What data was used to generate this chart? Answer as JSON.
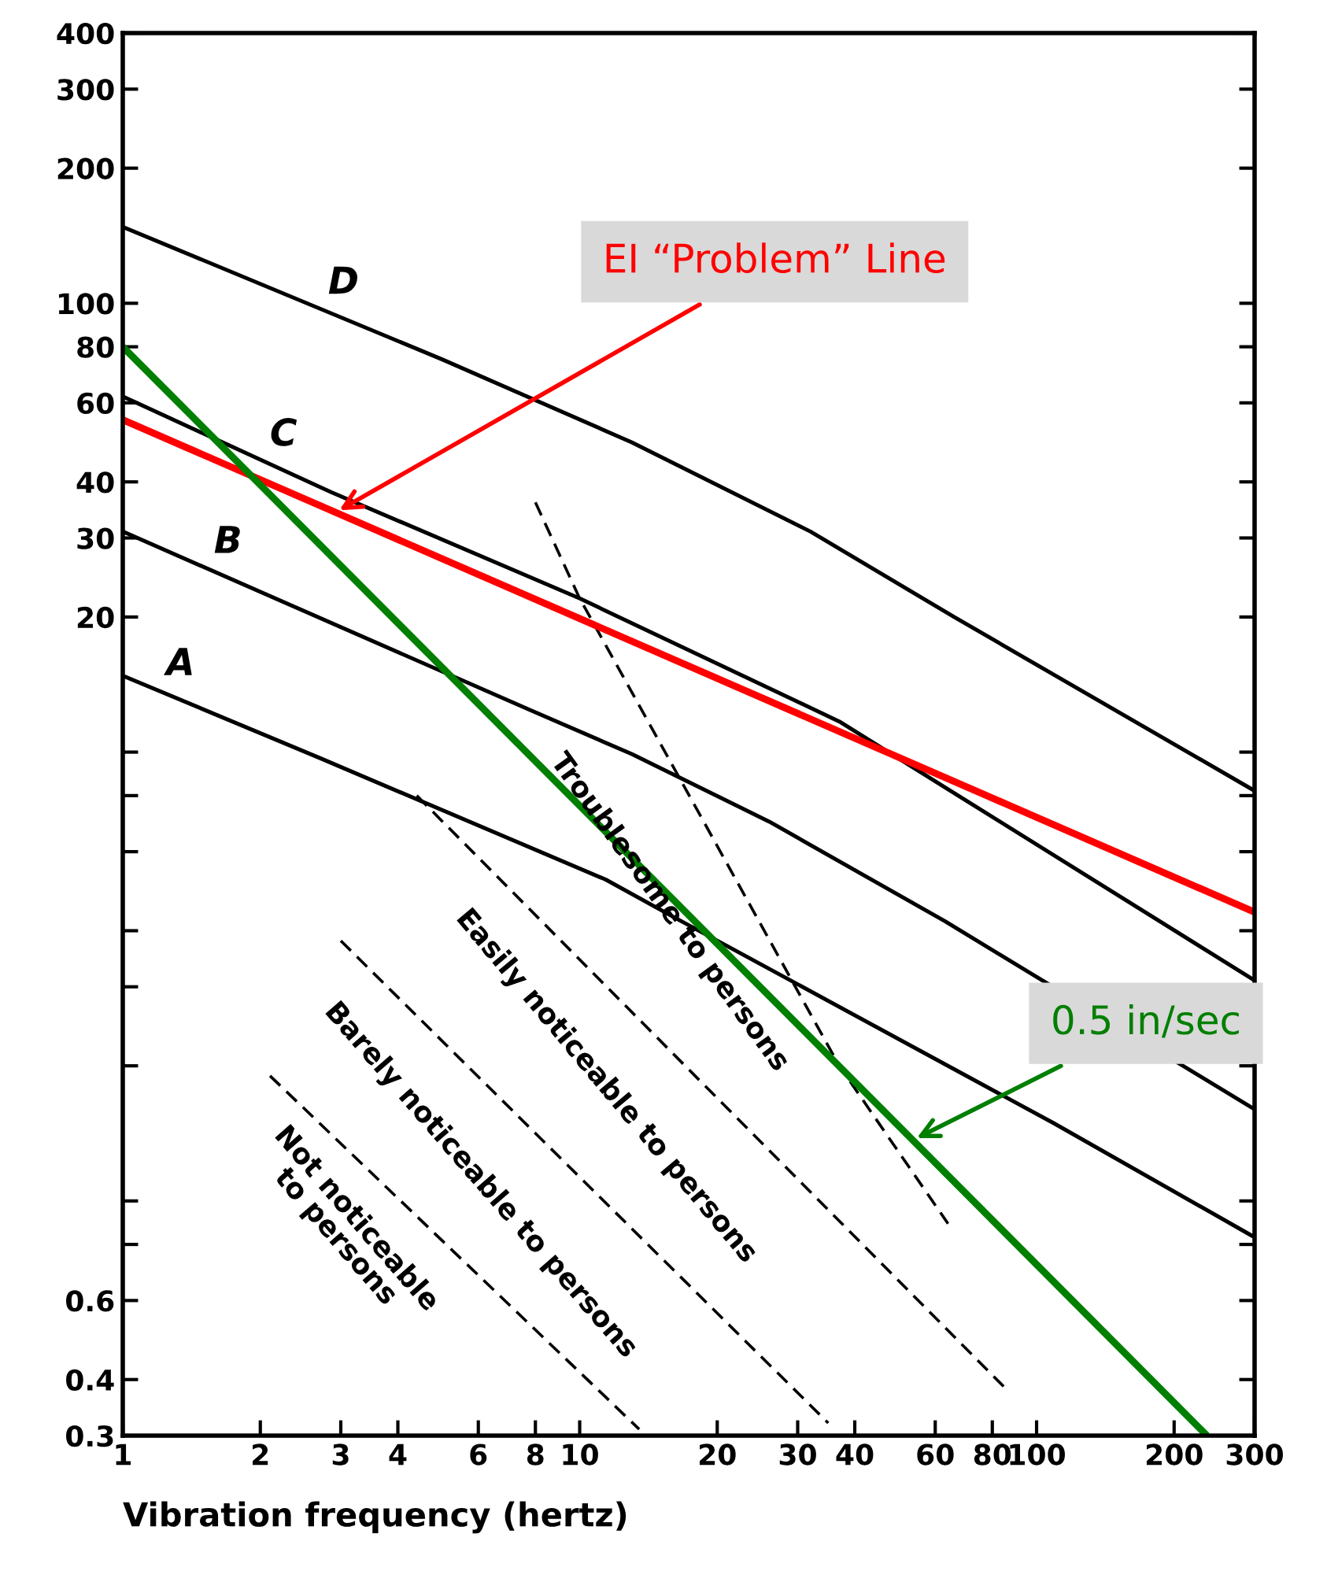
{
  "chart_data": {
    "type": "line",
    "xlabel": "Vibration frequency (hertz)",
    "log": "xy",
    "xlim": [
      1,
      300
    ],
    "ylim": [
      0.3,
      400
    ],
    "xticks": [
      1,
      2,
      3,
      4,
      6,
      8,
      10,
      20,
      30,
      40,
      60,
      80,
      100,
      200,
      300
    ],
    "yticks": [
      0.3,
      0.4,
      0.6,
      {
        "value": 0.8,
        "label": null
      },
      {
        "value": 1,
        "label": null
      },
      {
        "value": 2,
        "label": null
      },
      {
        "value": 3,
        "label": null
      },
      {
        "value": 4,
        "label": null
      },
      {
        "value": 6,
        "label": null
      },
      {
        "value": 8,
        "label": null
      },
      {
        "value": 10,
        "label": null
      },
      20,
      30,
      40,
      60,
      80,
      100,
      200,
      300,
      400
    ],
    "grid": false,
    "legend": false,
    "marker": "none",
    "series": [
      {
        "name": "A",
        "color": "#000000",
        "x": [
          1,
          2.7,
          11.4,
          16,
          109,
          300
        ],
        "values": [
          14.8,
          9.7,
          5.2,
          4.3,
          1.49,
          0.83
        ]
      },
      {
        "name": "B",
        "color": "#000000",
        "x": [
          1,
          7.8,
          13,
          26,
          63,
          300
        ],
        "values": [
          31,
          12.4,
          9.9,
          7.0,
          4.2,
          1.6
        ]
      },
      {
        "name": "C",
        "color": "#000000",
        "x": [
          1,
          2.85,
          10,
          37,
          300
        ],
        "values": [
          62,
          38,
          22,
          11.7,
          3.1
        ]
      },
      {
        "name": "D",
        "color": "#000000",
        "x": [
          1,
          5,
          13,
          32,
          66,
          300
        ],
        "values": [
          148,
          75,
          49,
          31,
          20,
          8.2
        ]
      },
      {
        "color": "#000000",
        "line_style": "dashed",
        "x": [
          8,
          10,
          37,
          64
        ],
        "values": [
          36,
          22,
          2.0,
          0.89
        ]
      },
      {
        "color": "#000000",
        "line_style": "dashed",
        "x": [
          4.4,
          86
        ],
        "values": [
          8.0,
          0.38
        ]
      },
      {
        "color": "#000000",
        "line_style": "dashed",
        "x": [
          3.0,
          35
        ],
        "values": [
          3.8,
          0.32
        ]
      },
      {
        "color": "#000000",
        "line_style": "dashed",
        "x": [
          2.1,
          13.5
        ],
        "values": [
          1.9,
          0.31
        ]
      },
      {
        "name": "EI “Problem” Line",
        "color": "#ff0000",
        "x": [
          1,
          300
        ],
        "values": [
          55,
          4.4
        ]
      },
      {
        "name": "0.5 in/sec",
        "color": "#007f00",
        "x": [
          1,
          236
        ],
        "values": [
          80,
          0.3
        ]
      }
    ],
    "annotations": [
      "Troublesome to persons",
      "Easily noticeable to persons",
      "Barely noticeable to persons",
      "Not noticeable\nto persons"
    ]
  }
}
